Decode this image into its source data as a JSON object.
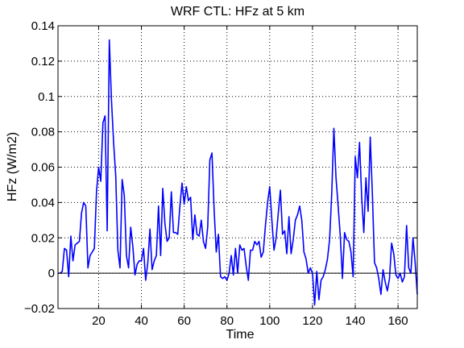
{
  "chart_data": {
    "type": "line",
    "title": "WRF CTL: HFz at 5 km",
    "xlabel": "Time",
    "ylabel": "HFz (W/m2)",
    "xlim": [
      1,
      169
    ],
    "ylim": [
      -0.02,
      0.14
    ],
    "xticks": [
      20,
      40,
      60,
      80,
      100,
      120,
      140,
      160
    ],
    "yticks": [
      -0.02,
      0,
      0.02,
      0.04,
      0.06,
      0.08,
      0.1,
      0.12,
      0.14
    ],
    "ytick_labels": [
      "−0.02",
      "0",
      "0.02",
      "0.04",
      "0.06",
      "0.08",
      "0.1",
      "0.12",
      "0.14"
    ],
    "grid": true,
    "zero_line": true,
    "series": [
      {
        "name": "HFz",
        "color": "#0000ff",
        "x": [
          1,
          2,
          3,
          4,
          5,
          6,
          7,
          8,
          9,
          10,
          11,
          12,
          13,
          14,
          15,
          16,
          17,
          18,
          19,
          20,
          21,
          22,
          23,
          24,
          25,
          26,
          27,
          28,
          29,
          30,
          31,
          32,
          33,
          34,
          35,
          36,
          37,
          38,
          39,
          40,
          41,
          42,
          43,
          44,
          45,
          46,
          47,
          48,
          49,
          50,
          51,
          52,
          53,
          54,
          55,
          56,
          57,
          58,
          59,
          60,
          61,
          62,
          63,
          64,
          65,
          66,
          67,
          68,
          69,
          70,
          71,
          72,
          73,
          74,
          75,
          76,
          77,
          78,
          79,
          80,
          81,
          82,
          83,
          84,
          85,
          86,
          87,
          88,
          89,
          90,
          91,
          92,
          93,
          94,
          95,
          96,
          97,
          98,
          99,
          100,
          101,
          102,
          103,
          104,
          105,
          106,
          107,
          108,
          109,
          110,
          111,
          112,
          113,
          114,
          115,
          116,
          117,
          118,
          119,
          120,
          121,
          122,
          123,
          124,
          125,
          126,
          127,
          128,
          129,
          130,
          131,
          132,
          133,
          134,
          135,
          136,
          137,
          138,
          139,
          140,
          141,
          142,
          143,
          144,
          145,
          146,
          147,
          148,
          149,
          150,
          151,
          152,
          153,
          154,
          155,
          156,
          157,
          158,
          159,
          160,
          161,
          162,
          163,
          164,
          165,
          166,
          167,
          168,
          169
        ],
        "y": [
          0.0,
          0.0,
          0.001,
          0.014,
          0.013,
          -0.002,
          0.021,
          0.007,
          0.016,
          0.017,
          0.018,
          0.034,
          0.04,
          0.038,
          0.003,
          0.01,
          0.012,
          0.014,
          0.046,
          0.06,
          0.052,
          0.085,
          0.089,
          0.024,
          0.132,
          0.098,
          0.074,
          0.055,
          0.013,
          0.003,
          0.053,
          0.044,
          0.01,
          0.003,
          0.026,
          0.015,
          -0.001,
          0.005,
          0.007,
          0.007,
          0.014,
          -0.004,
          0.006,
          0.025,
          0.002,
          0.007,
          0.01,
          0.038,
          0.01,
          0.048,
          0.028,
          0.018,
          0.02,
          0.046,
          0.023,
          0.023,
          0.022,
          0.038,
          0.051,
          0.039,
          0.049,
          0.041,
          0.043,
          0.019,
          0.033,
          0.022,
          0.021,
          0.03,
          0.018,
          0.014,
          0.026,
          0.064,
          0.068,
          0.036,
          0.012,
          0.022,
          -0.002,
          -0.003,
          -0.002,
          -0.004,
          0.0,
          0.01,
          -0.001,
          0.014,
          0.0,
          0.016,
          0.013,
          0.014,
          0.004,
          -0.004,
          0.013,
          0.013,
          0.018,
          0.016,
          0.018,
          0.009,
          0.012,
          0.027,
          0.04,
          0.049,
          0.03,
          0.013,
          0.02,
          0.034,
          0.047,
          0.022,
          0.024,
          0.011,
          0.032,
          0.011,
          0.019,
          0.03,
          0.033,
          0.038,
          0.03,
          0.012,
          0.008,
          0.0,
          0.003,
          0.0,
          -0.018,
          0.001,
          -0.015,
          -0.004,
          -0.002,
          0.002,
          0.008,
          0.019,
          0.045,
          0.082,
          0.054,
          0.038,
          0.021,
          -0.003,
          0.023,
          0.019,
          0.018,
          0.012,
          -0.002,
          0.066,
          0.054,
          0.074,
          0.043,
          0.023,
          0.054,
          0.035,
          0.077,
          0.045,
          0.006,
          0.003,
          -0.003,
          -0.012,
          0.002,
          -0.005,
          -0.01,
          -0.003,
          0.017,
          0.011,
          -0.001,
          -0.003,
          0.0,
          -0.005,
          -0.002,
          0.027,
          0.003,
          0.0,
          0.02,
          0.006,
          -0.012
        ]
      }
    ]
  }
}
